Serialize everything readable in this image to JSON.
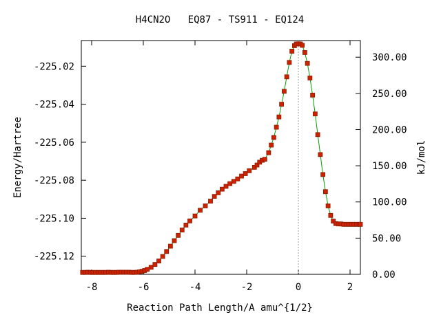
{
  "chart_data": {
    "type": "scatter",
    "title": "H4CN2O   EQ87 - TS911 - EQ124",
    "xlabel": "Reaction Path Length/A amu^{1/2}",
    "ylabel": "Energy/Hartree",
    "y2label": "kJ/mol",
    "xlim": [
      -8.4,
      2.4
    ],
    "ylim": [
      -225.1295,
      -225.0065
    ],
    "y2lim": [
      0.0,
      323.0
    ],
    "x_ticks": [
      -8,
      -6,
      -4,
      -2,
      0,
      2
    ],
    "x_tick_labels": [
      "-8",
      "-6",
      "-4",
      "-2",
      "0",
      "2"
    ],
    "y_ticks": [
      -225.02,
      -225.04,
      -225.06,
      -225.08,
      -225.1,
      -225.12
    ],
    "y_tick_labels": [
      "-225.02",
      "-225.04",
      "-225.06",
      "-225.08",
      "-225.10",
      "-225.12"
    ],
    "y2_ticks": [
      0,
      50,
      100,
      150,
      200,
      250,
      300
    ],
    "y2_tick_labels": [
      "0.00",
      "50.00",
      "100.00",
      "150.00",
      "200.00",
      "250.00",
      "300.00"
    ],
    "ts_marker_x": 0.0,
    "grid": false,
    "legend": "none",
    "colors": {
      "line": "#00a000",
      "marker": "#cc2200",
      "marker_edge": "#8b1a00",
      "ts_line": "#999999"
    },
    "series": [
      {
        "x": [
          -8.35,
          -8.25,
          -8.15,
          -8.05,
          -7.95,
          -7.85,
          -7.75,
          -7.65,
          -7.55,
          -7.45,
          -7.35,
          -7.25,
          -7.15,
          -7.05,
          -6.95,
          -6.85,
          -6.75,
          -6.65,
          -6.55,
          -6.45,
          -6.35,
          -6.25,
          -6.15,
          -6.05,
          -5.95,
          -5.85,
          -5.7,
          -5.55,
          -5.4,
          -5.25,
          -5.1,
          -4.95,
          -4.8,
          -4.65,
          -4.5,
          -4.35,
          -4.2,
          -4.0,
          -3.8,
          -3.6,
          -3.4,
          -3.25,
          -3.1,
          -2.95,
          -2.8,
          -2.65,
          -2.5,
          -2.35,
          -2.2,
          -2.05,
          -1.9,
          -1.7,
          -1.6,
          -1.5,
          -1.4,
          -1.3,
          -1.15,
          -1.05,
          -0.95,
          -0.85,
          -0.75,
          -0.65,
          -0.55,
          -0.45,
          -0.35,
          -0.25,
          -0.15,
          -0.08,
          0.0,
          0.08,
          0.15,
          0.25,
          0.35,
          0.45,
          0.55,
          0.65,
          0.75,
          0.85,
          0.95,
          1.05,
          1.15,
          1.25,
          1.35,
          1.45,
          1.55,
          1.65,
          1.75,
          1.85,
          1.95,
          2.05,
          2.15,
          2.25,
          2.35,
          2.4
        ],
        "y": [
          -225.1285,
          -225.1285,
          -225.1284,
          -225.1285,
          -225.1285,
          -225.1285,
          -225.1285,
          -225.1285,
          -225.1285,
          -225.1285,
          -225.1284,
          -225.1285,
          -225.1285,
          -225.1285,
          -225.1284,
          -225.1284,
          -225.1284,
          -225.1284,
          -225.1284,
          -225.1285,
          -225.1285,
          -225.1284,
          -225.1282,
          -225.1279,
          -225.1275,
          -225.1269,
          -225.1258,
          -225.1243,
          -225.1225,
          -225.1201,
          -225.1175,
          -225.1147,
          -225.1118,
          -225.109,
          -225.1062,
          -225.1036,
          -225.1014,
          -225.0988,
          -225.0958,
          -225.0935,
          -225.091,
          -225.0885,
          -225.0866,
          -225.0847,
          -225.0832,
          -225.0818,
          -225.0806,
          -225.0793,
          -225.0778,
          -225.0765,
          -225.075,
          -225.0732,
          -225.072,
          -225.0705,
          -225.0695,
          -225.069,
          -225.0655,
          -225.0615,
          -225.0575,
          -225.0521,
          -225.0467,
          -225.04,
          -225.0332,
          -225.0256,
          -225.018,
          -225.0121,
          -225.0092,
          -225.0083,
          -225.0082,
          -225.0083,
          -225.009,
          -225.0128,
          -225.0185,
          -225.0262,
          -225.0352,
          -225.0451,
          -225.056,
          -225.0665,
          -225.077,
          -225.086,
          -225.0935,
          -225.0985,
          -225.1015,
          -225.1028,
          -225.103,
          -225.103,
          -225.1032,
          -225.1032,
          -225.1032,
          -225.1032,
          -225.1032,
          -225.1032,
          -225.1032,
          -225.1032
        ]
      }
    ]
  }
}
